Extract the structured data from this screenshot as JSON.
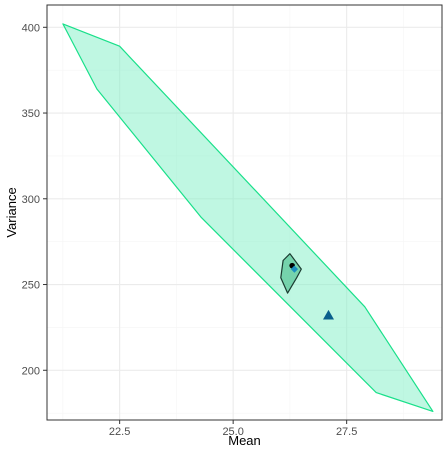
{
  "chart_data": {
    "type": "scatter",
    "xlabel": "Mean",
    "ylabel": "Variance",
    "xlim": [
      20.9,
      29.6
    ],
    "ylim": [
      171,
      413
    ],
    "x_ticks": [
      22.5,
      25.0,
      27.5
    ],
    "x_tick_labels": [
      "22.5",
      "25.0",
      "27.5"
    ],
    "y_ticks": [
      200,
      250,
      300,
      350,
      400
    ],
    "y_tick_labels": [
      "200",
      "250",
      "300",
      "350",
      "400"
    ],
    "grid": true,
    "regions": [
      {
        "role": "outer",
        "fill": "#7ff0c6",
        "stroke": "#19e08a",
        "points": [
          [
            21.25,
            402
          ],
          [
            22.5,
            389
          ],
          [
            27.9,
            237
          ],
          [
            29.4,
            176
          ],
          [
            28.15,
            187
          ],
          [
            24.3,
            289
          ],
          [
            22.0,
            364
          ]
        ]
      },
      {
        "role": "inner",
        "fill": "#5cc79a",
        "stroke": "#1a3a30",
        "points": [
          [
            26.25,
            268
          ],
          [
            26.5,
            259
          ],
          [
            26.4,
            254
          ],
          [
            26.2,
            245
          ],
          [
            26.05,
            254
          ],
          [
            26.1,
            264
          ]
        ]
      }
    ],
    "points": [
      {
        "shape": "circle",
        "color": "#000000",
        "x": 26.3,
        "y": 261
      },
      {
        "shape": "diamond",
        "color": "#1a8fbf",
        "x": 26.35,
        "y": 259
      },
      {
        "shape": "triangle",
        "color": "#0a5f8c",
        "x": 27.1,
        "y": 232
      }
    ],
    "colors": {
      "panel_border": "#333333",
      "grid_major": "#ebebeb",
      "grid_minor": "#f5f5f5",
      "tick": "#333333"
    }
  }
}
